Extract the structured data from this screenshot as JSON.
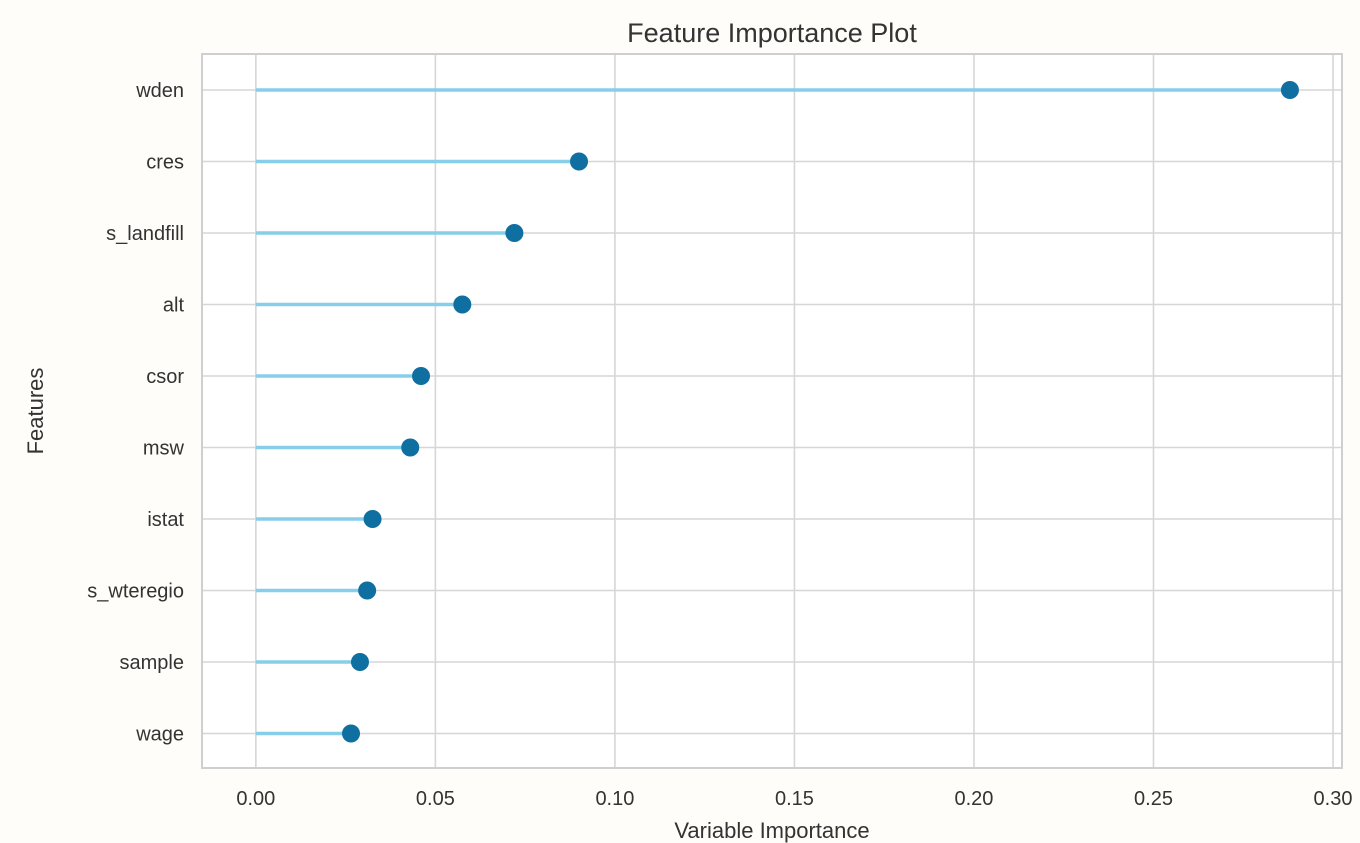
{
  "chart_data": {
    "type": "lollipop",
    "title": "Feature Importance Plot",
    "xlabel": "Variable Importance",
    "ylabel": "Features",
    "xlim": [
      -0.015,
      0.3025
    ],
    "xticks": [
      0.0,
      0.05,
      0.1,
      0.15,
      0.2,
      0.25,
      0.3
    ],
    "xtick_labels": [
      "0.00",
      "0.05",
      "0.10",
      "0.15",
      "0.20",
      "0.25",
      "0.30"
    ],
    "grid": true,
    "categories": [
      "wden",
      "cres",
      "s_landfill",
      "alt",
      "csor",
      "msw",
      "istat",
      "s_wteregio",
      "sample",
      "wage"
    ],
    "values": [
      0.288,
      0.09,
      0.072,
      0.0575,
      0.046,
      0.043,
      0.0325,
      0.031,
      0.029,
      0.0265
    ],
    "colors": {
      "stem": "#87CEEB",
      "dot": "#0F6FA0",
      "grid": "#d6d6d6",
      "frame": "#cfcfcf",
      "background": "#ffffff",
      "page": "#fffdf9"
    }
  }
}
